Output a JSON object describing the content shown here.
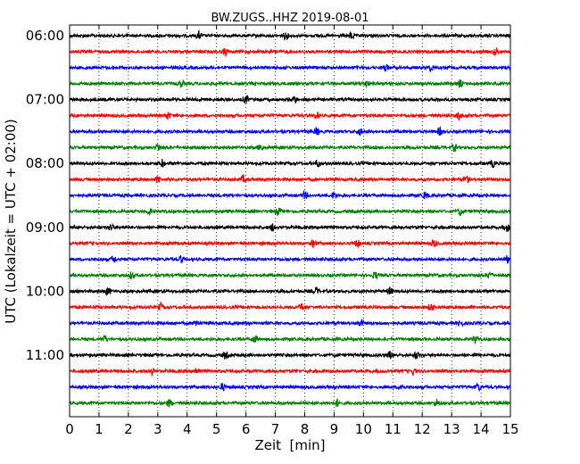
{
  "chart_data": {
    "type": "line",
    "title": "BW.ZUGS..HHZ 2019-08-01",
    "xlabel": "Zeit  [min]",
    "ylabel": "UTC (Lokalzeit = UTC + 02:00)",
    "xlim": [
      0,
      15
    ],
    "x_ticks": [
      "0",
      "1",
      "2",
      "3",
      "4",
      "5",
      "6",
      "7",
      "8",
      "9",
      "10",
      "11",
      "12",
      "13",
      "14",
      "15"
    ],
    "y_tick_labels": [
      "06:00",
      "07:00",
      "08:00",
      "09:00",
      "10:00",
      "11:00"
    ],
    "grid": "vertical dotted",
    "trace_colors": [
      "#000000",
      "#ff0000",
      "#0000ff",
      "#008000"
    ],
    "trace_interval_minutes": 15,
    "traces": [
      {
        "start": "06:00",
        "spikes": [
          4.4,
          7.35,
          9.6
        ]
      },
      {
        "start": "06:15",
        "spikes": [
          5.3,
          14.5
        ]
      },
      {
        "start": "06:30",
        "spikes": [
          10.75,
          12.3
        ]
      },
      {
        "start": "06:45",
        "spikes": [
          3.8,
          13.3,
          10.1
        ]
      },
      {
        "start": "07:00",
        "spikes": [
          7.65,
          6.0
        ]
      },
      {
        "start": "07:15",
        "spikes": [
          3.35,
          8.4,
          13.25
        ]
      },
      {
        "start": "07:30",
        "spikes": [
          8.4,
          9.9,
          12.6
        ]
      },
      {
        "start": "07:45",
        "spikes": [
          3.0,
          6.5,
          13.1
        ]
      },
      {
        "start": "08:00",
        "spikes": [
          3.15,
          8.45,
          14.4
        ]
      },
      {
        "start": "08:15",
        "spikes": [
          3.0,
          5.9,
          13.5
        ]
      },
      {
        "start": "08:30",
        "spikes": [
          8.0,
          9.0,
          12.1
        ]
      },
      {
        "start": "08:45",
        "spikes": [
          2.7,
          7.1,
          13.3
        ]
      },
      {
        "start": "09:00",
        "spikes": [
          1.4,
          6.9,
          14.9
        ]
      },
      {
        "start": "09:15",
        "spikes": [
          8.3,
          9.8,
          12.4
        ]
      },
      {
        "start": "09:30",
        "spikes": [
          1.5,
          3.8,
          14.9
        ]
      },
      {
        "start": "09:45",
        "spikes": [
          2.1,
          10.4,
          14.3
        ]
      },
      {
        "start": "10:00",
        "spikes": [
          1.3,
          8.4,
          10.9
        ]
      },
      {
        "start": "10:15",
        "spikes": [
          3.1,
          7.9,
          12.3
        ]
      },
      {
        "start": "10:30",
        "spikes": [
          4.3,
          9.9,
          13.3
        ]
      },
      {
        "start": "10:45",
        "spikes": [
          1.2,
          6.3,
          13.8
        ]
      },
      {
        "start": "11:00",
        "spikes": [
          5.3,
          10.9,
          11.8
        ]
      },
      {
        "start": "11:15",
        "spikes": [
          2.8,
          4.3,
          11.7
        ]
      },
      {
        "start": "11:30",
        "spikes": [
          5.2,
          11.3,
          13.9
        ]
      },
      {
        "start": "11:45",
        "spikes": [
          3.4,
          9.1,
          12.5
        ]
      }
    ]
  }
}
